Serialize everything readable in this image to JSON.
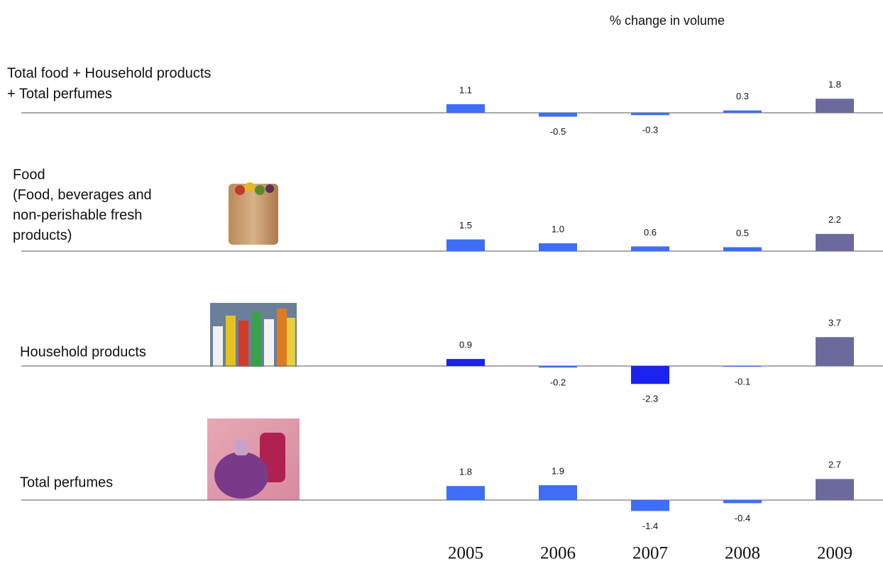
{
  "title": "% change in volume",
  "categories": [
    "2005",
    "2006",
    "2007",
    "2008",
    "2009"
  ],
  "chart_data": [
    {
      "type": "bar",
      "title": [
        "Total food + Household products",
        "+ Total perfumes"
      ],
      "values": [
        1.1,
        -0.5,
        -0.3,
        0.3,
        1.8
      ],
      "value_labels": [
        "1.1",
        "-0.5",
        "-0.3",
        "0.3",
        "1.8"
      ],
      "colors": [
        "#3d6ef5",
        "#3d6ef5",
        "#3d6ef5",
        "#3d6ef5",
        "#6c6a9c"
      ]
    },
    {
      "type": "bar",
      "title": [
        "Food",
        "(Food, beverages and",
        "non-perishable fresh",
        "products)"
      ],
      "values": [
        1.5,
        1.0,
        0.6,
        0.5,
        2.2
      ],
      "value_labels": [
        "1.5",
        "1.0",
        "0.6",
        "0.5",
        "2.2"
      ],
      "colors": [
        "#3d6ef5",
        "#3d6ef5",
        "#3d6ef5",
        "#3d6ef5",
        "#6c6a9c"
      ]
    },
    {
      "type": "bar",
      "title": [
        "Household products"
      ],
      "values": [
        0.9,
        -0.2,
        -2.3,
        -0.1,
        3.7
      ],
      "value_labels": [
        "0.9",
        "-0.2",
        "-2.3",
        "-0.1",
        "3.7"
      ],
      "colors": [
        "#1a22ee",
        "#3d6ef5",
        "#1a22ee",
        "#3d6ef5",
        "#6c6a9c"
      ]
    },
    {
      "type": "bar",
      "title": [
        "Total perfumes"
      ],
      "values": [
        1.8,
        1.9,
        -1.4,
        -0.4,
        2.7
      ],
      "value_labels": [
        "1.8",
        "1.9",
        "-1.4",
        "-0.4",
        "2.7"
      ],
      "colors": [
        "#3d6ef5",
        "#3d6ef5",
        "#3d6ef5",
        "#3d6ef5",
        "#6c6a9c"
      ]
    }
  ]
}
